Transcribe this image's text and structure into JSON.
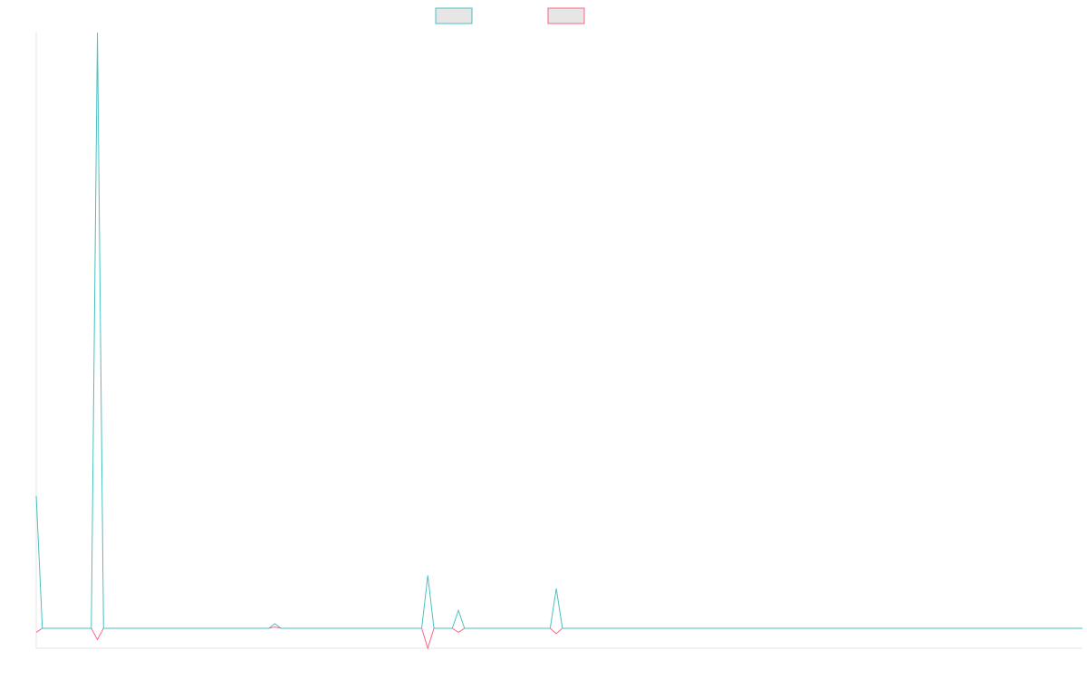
{
  "chart_data": {
    "type": "line",
    "title": "",
    "xlabel": "",
    "ylabel": "",
    "legend_position": "top-center",
    "grid": false,
    "x_count": 172,
    "ylim": [
      -30,
      900
    ],
    "series": [
      {
        "name": "",
        "color": "#4bc0c0",
        "fill": "#e6e6e6",
        "points": [
          [
            0,
            200
          ],
          [
            1,
            0
          ],
          [
            9,
            0
          ],
          [
            10,
            900
          ],
          [
            11,
            0
          ],
          [
            38,
            0
          ],
          [
            39,
            7
          ],
          [
            40,
            0
          ],
          [
            63,
            0
          ],
          [
            64,
            80
          ],
          [
            65,
            0
          ],
          [
            68,
            0
          ],
          [
            69,
            27
          ],
          [
            70,
            0
          ],
          [
            84,
            0
          ],
          [
            85,
            60
          ],
          [
            86,
            0
          ],
          [
            171,
            0
          ]
        ]
      },
      {
        "name": "",
        "color": "#ff6384",
        "fill": "#e6e6e6",
        "points": [
          [
            0,
            -6
          ],
          [
            1,
            0
          ],
          [
            9,
            0
          ],
          [
            10,
            -17
          ],
          [
            11,
            0
          ],
          [
            38,
            0
          ],
          [
            39,
            2
          ],
          [
            40,
            0
          ],
          [
            63,
            0
          ],
          [
            64,
            -30
          ],
          [
            65,
            0
          ],
          [
            68,
            0
          ],
          [
            69,
            -6
          ],
          [
            70,
            0
          ],
          [
            84,
            0
          ],
          [
            85,
            -8
          ],
          [
            86,
            0
          ],
          [
            171,
            0
          ]
        ]
      }
    ]
  }
}
